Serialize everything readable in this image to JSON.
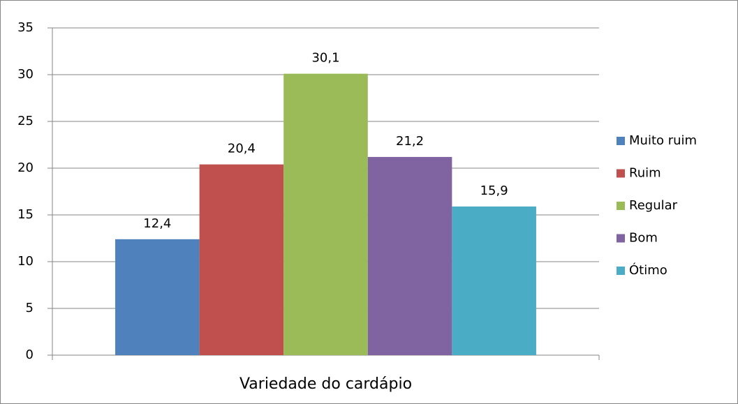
{
  "chart_data": {
    "type": "bar",
    "categories": [
      "Variedade do cardápio"
    ],
    "series": [
      {
        "name": "Muito ruim",
        "color": "#4f81bd",
        "values": [
          12.4
        ],
        "value_labels": [
          "12,4"
        ]
      },
      {
        "name": "Ruim",
        "color": "#c0504d",
        "values": [
          20.4
        ],
        "value_labels": [
          "20,4"
        ]
      },
      {
        "name": "Regular",
        "color": "#9bbb59",
        "values": [
          30.1
        ],
        "value_labels": [
          "30,1"
        ]
      },
      {
        "name": "Bom",
        "color": "#8064a2",
        "values": [
          21.2
        ],
        "value_labels": [
          "21,2"
        ]
      },
      {
        "name": "Ótimo",
        "color": "#4bacc6",
        "values": [
          15.9
        ],
        "value_labels": [
          "15,9"
        ]
      }
    ],
    "ylim": [
      0,
      35
    ],
    "yticks": [
      0,
      5,
      10,
      15,
      20,
      25,
      30,
      35
    ],
    "grid": true,
    "legend": "right"
  }
}
